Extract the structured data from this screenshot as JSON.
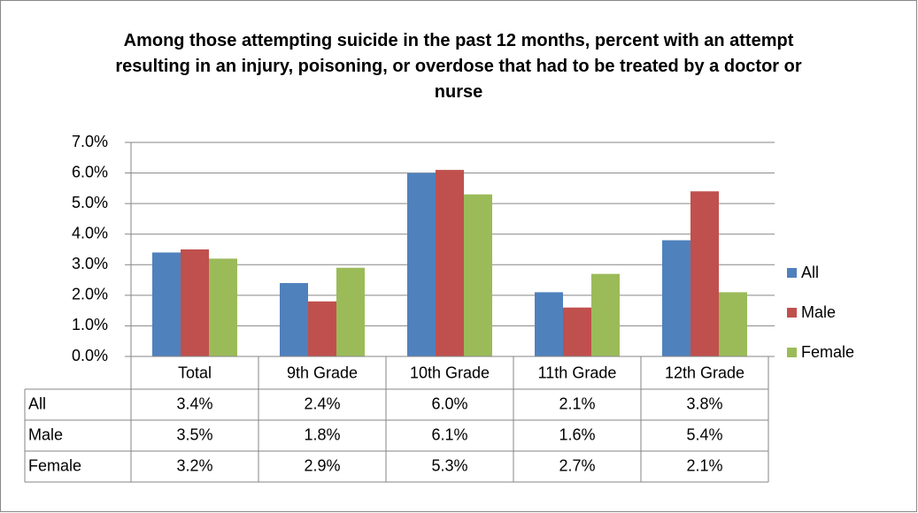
{
  "chart_data": {
    "type": "bar",
    "title": "Among those attempting suicide in the past 12 months, percent with an attempt resulting in an injury, poisoning, or overdose that had to be treated by a doctor or nurse",
    "categories": [
      "Total",
      "9th Grade",
      "10th Grade",
      "11th Grade",
      "12th Grade"
    ],
    "series": [
      {
        "name": "All",
        "color": "#4f81bd",
        "values": [
          3.4,
          2.4,
          6.0,
          2.1,
          3.8
        ],
        "value_labels": [
          "3.4%",
          "2.4%",
          "6.0%",
          "2.1%",
          "3.8%"
        ]
      },
      {
        "name": "Male",
        "color": "#c0504d",
        "values": [
          3.5,
          1.8,
          6.1,
          1.6,
          5.4
        ],
        "value_labels": [
          "3.5%",
          "1.8%",
          "6.1%",
          "1.6%",
          "5.4%"
        ]
      },
      {
        "name": "Female",
        "color": "#9bbb59",
        "values": [
          3.2,
          2.9,
          5.3,
          2.7,
          2.1
        ],
        "value_labels": [
          "3.2%",
          "2.9%",
          "5.3%",
          "2.7%",
          "2.1%"
        ]
      }
    ],
    "ylim": [
      0,
      7
    ],
    "yticks": [
      {
        "value": 0,
        "label": "0.0%"
      },
      {
        "value": 1,
        "label": "1.0%"
      },
      {
        "value": 2,
        "label": "2.0%"
      },
      {
        "value": 3,
        "label": "3.0%"
      },
      {
        "value": 4,
        "label": "4.0%"
      },
      {
        "value": 5,
        "label": "5.0%"
      },
      {
        "value": 6,
        "label": "6.0%"
      },
      {
        "value": 7,
        "label": "7.0%"
      }
    ],
    "grid": true,
    "legend": "right",
    "data_table": true
  }
}
